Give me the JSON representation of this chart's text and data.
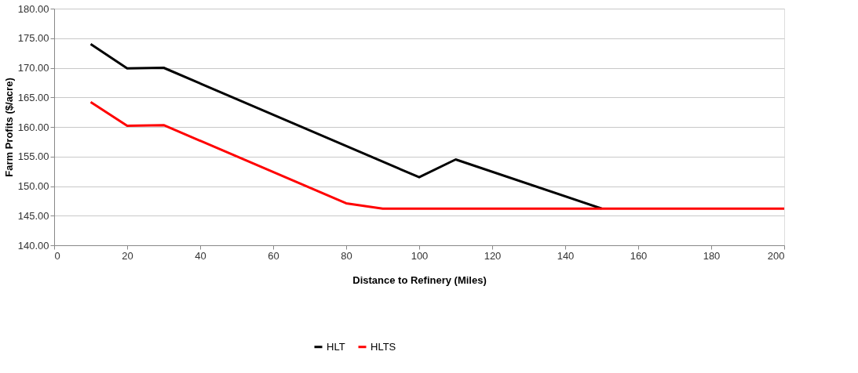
{
  "chart_data": {
    "type": "line",
    "xlabel": "Distance to Refinery (Miles)",
    "ylabel": "Farm Profits ($/acre)",
    "series": [
      {
        "name": "HLT",
        "color": "#000000",
        "x": [
          10,
          20,
          30,
          100,
          110,
          150
        ],
        "values": [
          174.0,
          169.9,
          170.0,
          151.5,
          154.5,
          146.2
        ]
      },
      {
        "name": "HLTS",
        "color": "#ff0000",
        "x": [
          10,
          20,
          30,
          80,
          90,
          200
        ],
        "values": [
          164.2,
          160.2,
          160.3,
          147.1,
          146.2,
          146.2
        ]
      }
    ],
    "xlim": [
      0,
      200
    ],
    "xticks": [
      0,
      20,
      40,
      60,
      80,
      100,
      120,
      140,
      160,
      180,
      200
    ],
    "ylim": [
      140,
      180
    ],
    "yticks": [
      {
        "value": 140,
        "label": "140.00"
      },
      {
        "value": 145,
        "label": "145.00"
      },
      {
        "value": 150,
        "label": "150.00"
      },
      {
        "value": 155,
        "label": "155.00"
      },
      {
        "value": 160,
        "label": "160.00"
      },
      {
        "value": 165,
        "label": "165.00"
      },
      {
        "value": 170,
        "label": "170.00"
      },
      {
        "value": 175,
        "label": "175.00"
      },
      {
        "value": 180,
        "label": "180.00"
      }
    ],
    "grid": "y",
    "legend": "bottom",
    "marker": "none",
    "line_style": "solid"
  }
}
